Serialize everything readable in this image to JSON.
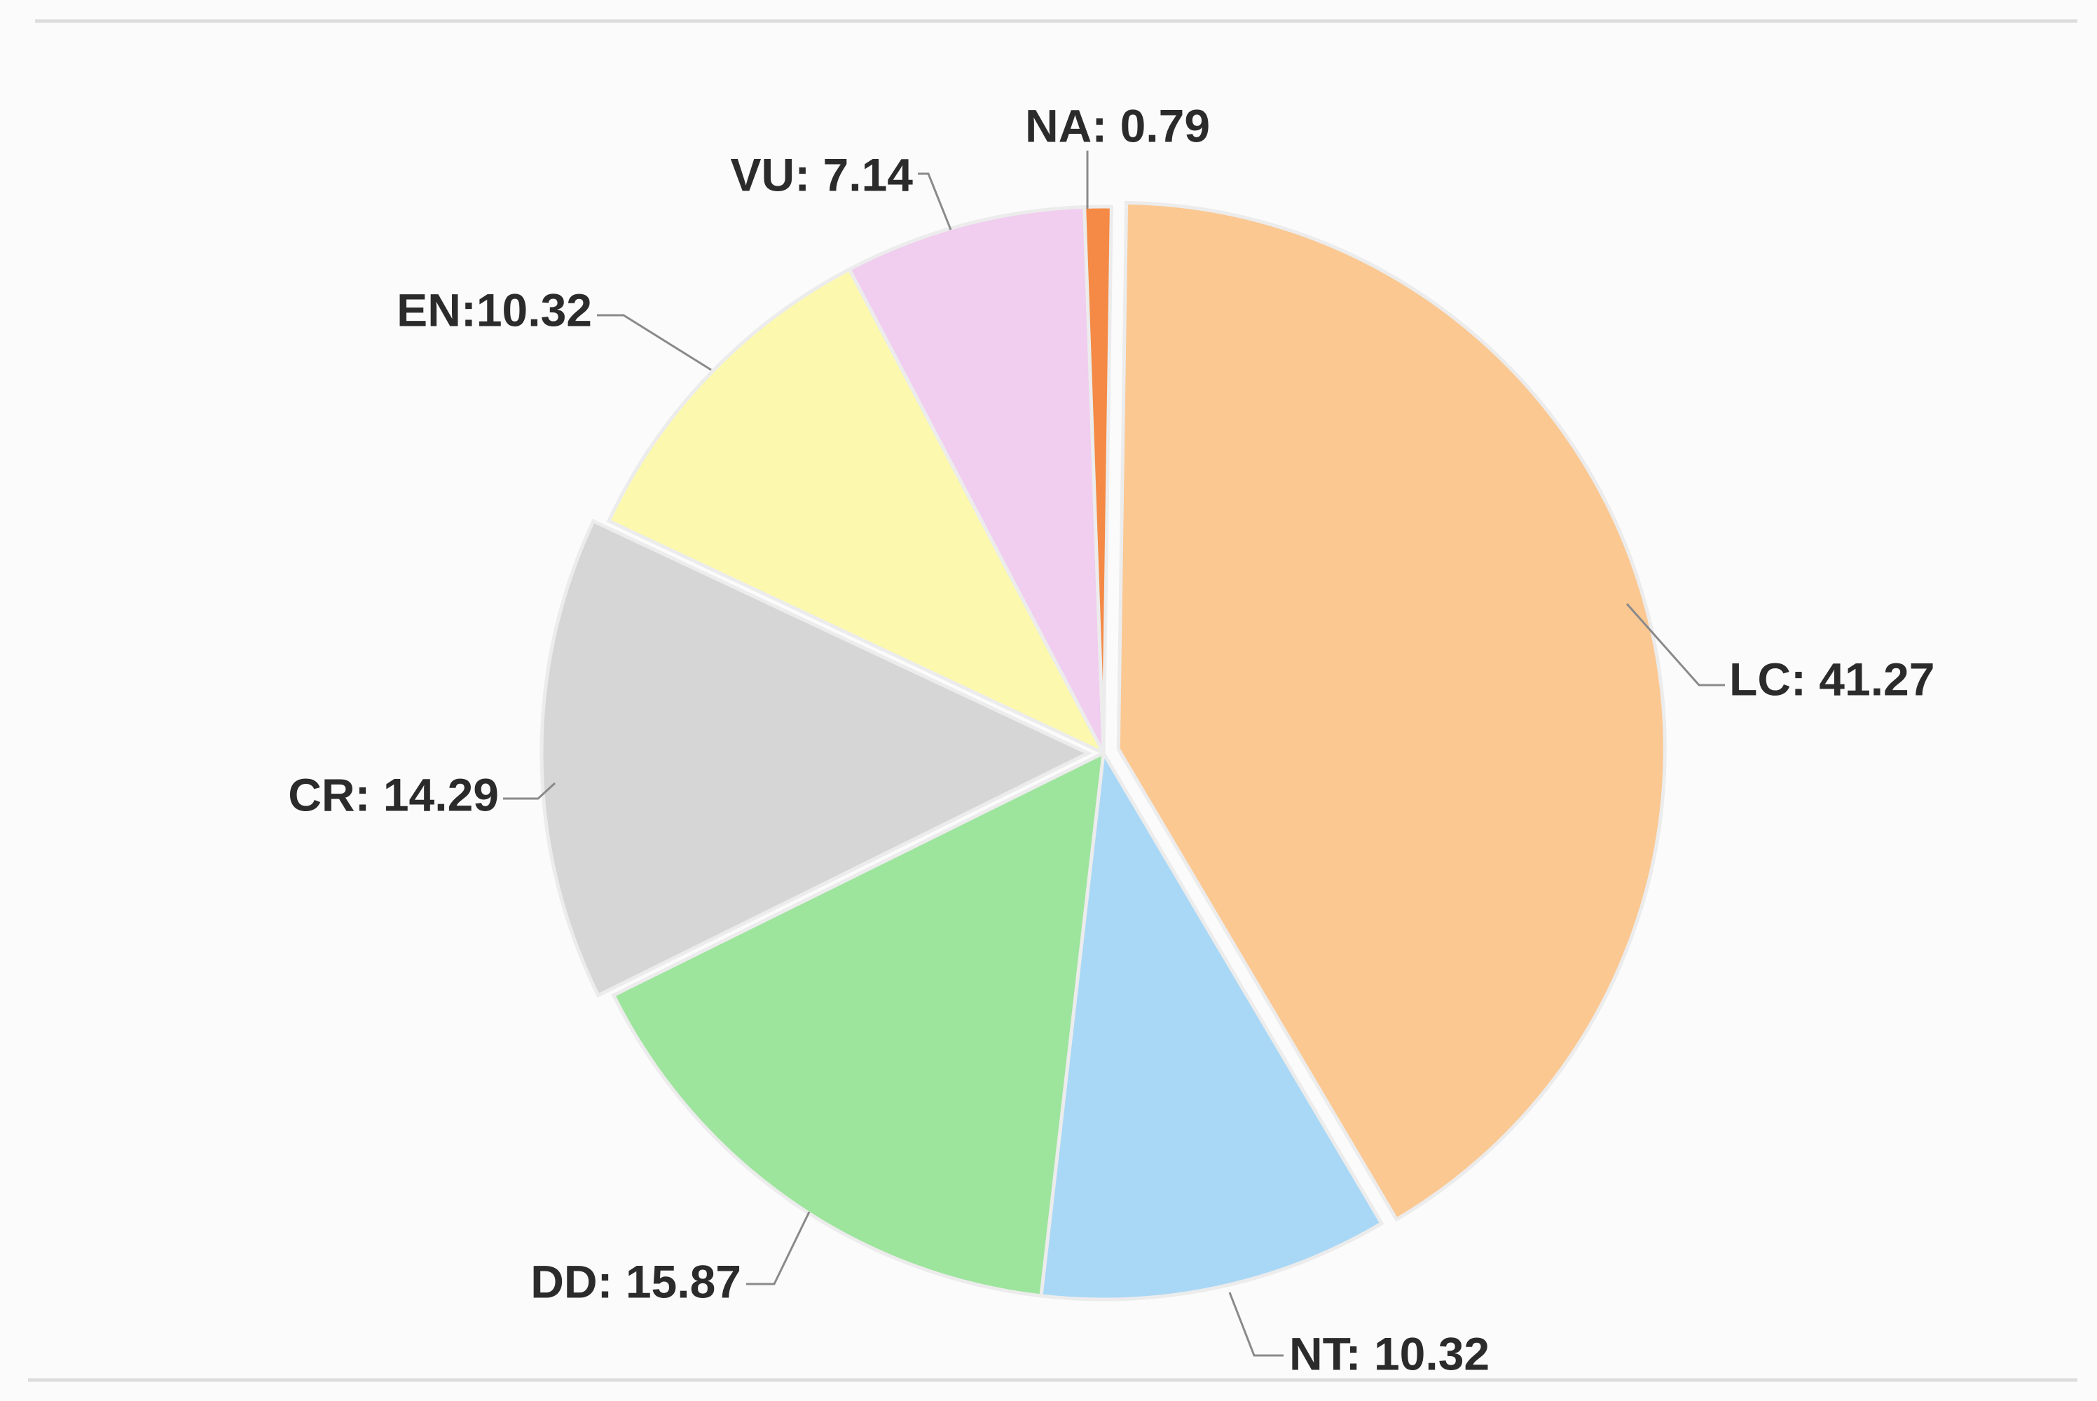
{
  "chart_data": {
    "type": "pie",
    "title": "",
    "legend": "none",
    "slices": [
      {
        "name": "LC",
        "value": 41.27,
        "label": "LC: 41.27",
        "color": "#fbc892",
        "exploded": true
      },
      {
        "name": "NT",
        "value": 10.32,
        "label": "NT: 10.32",
        "color": "#a9d8f6",
        "exploded": false
      },
      {
        "name": "DD",
        "value": 15.87,
        "label": "DD: 15.87",
        "color": "#9de49d",
        "exploded": false
      },
      {
        "name": "CR",
        "value": 14.29,
        "label": "CR: 14.29",
        "color": "#d6d6d6",
        "exploded": true
      },
      {
        "name": "EN",
        "value": 10.32,
        "label": "EN:10.32",
        "color": "#fcf9ae",
        "exploded": false
      },
      {
        "name": "VU",
        "value": 7.14,
        "label": "VU: 7.14",
        "color": "#f1cdef",
        "exploded": false
      },
      {
        "name": "NA",
        "value": 0.79,
        "label": "NA: 0.79",
        "color": "#f48a45",
        "exploded": false
      }
    ]
  }
}
